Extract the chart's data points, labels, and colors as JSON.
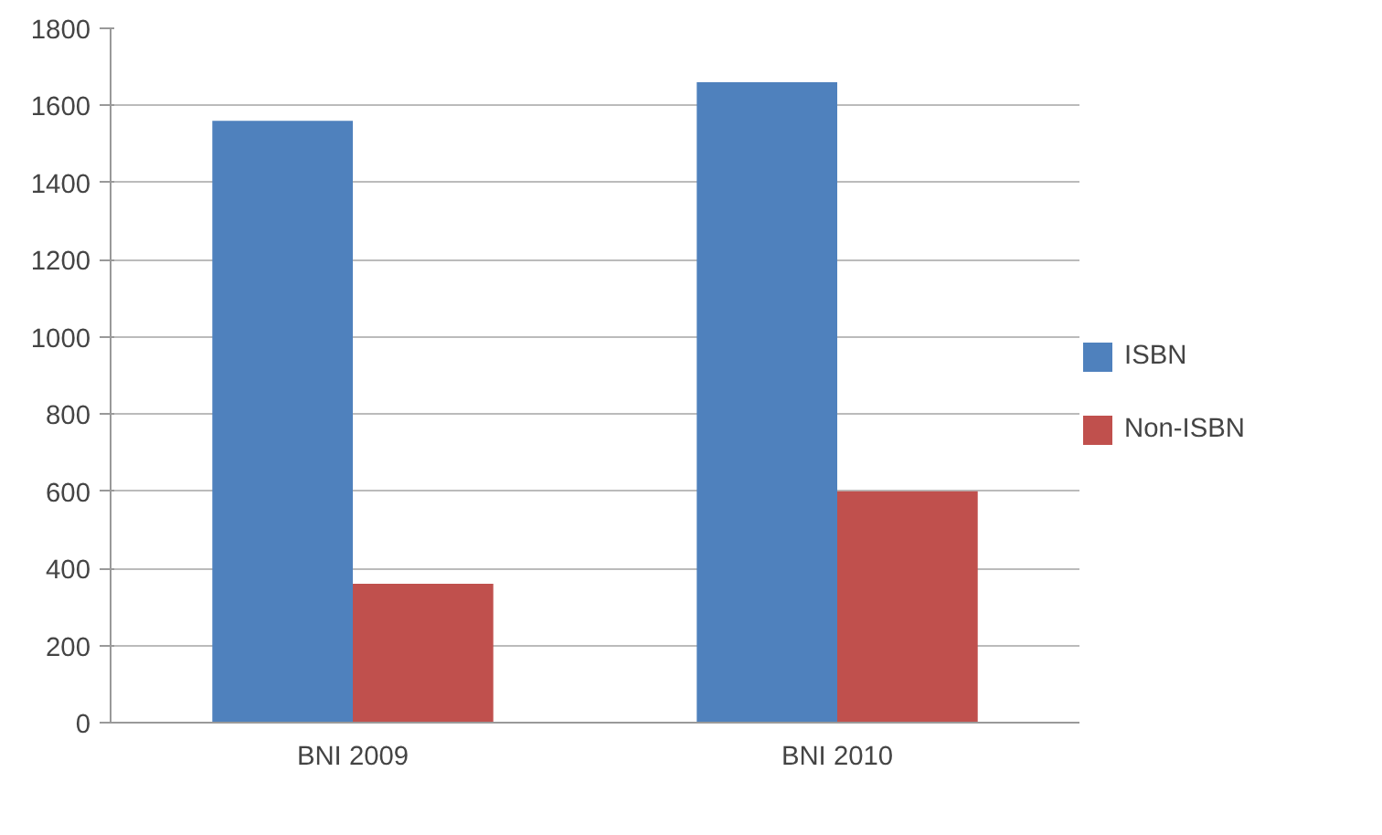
{
  "chart_data": {
    "type": "bar",
    "categories": [
      "BNI 2009",
      "BNI 2010"
    ],
    "series": [
      {
        "name": "ISBN",
        "color": "#4f81bd",
        "values": [
          1560,
          1660
        ]
      },
      {
        "name": "Non-ISBN",
        "color": "#c0504d",
        "values": [
          360,
          600
        ]
      }
    ],
    "ylim": [
      0,
      1800
    ],
    "yticks": [
      0,
      200,
      400,
      600,
      800,
      1000,
      1200,
      1400,
      1600,
      1800
    ],
    "grid": "y",
    "legend": "right"
  }
}
